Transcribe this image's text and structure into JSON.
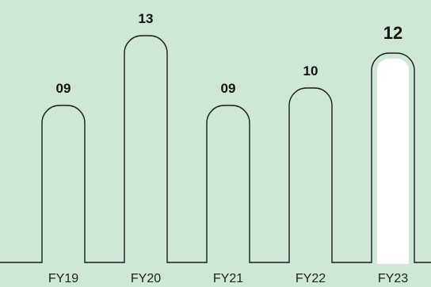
{
  "chart_data": {
    "type": "bar",
    "title": "",
    "xlabel": "",
    "ylabel": "",
    "categories": [
      "FY19",
      "FY20",
      "FY21",
      "FY22",
      "FY23"
    ],
    "values": [
      9,
      13,
      9,
      10,
      12
    ],
    "value_labels": [
      "09",
      "13",
      "09",
      "10",
      "12"
    ],
    "highlight_index": 4,
    "ylim": [
      0,
      13
    ],
    "grid": false,
    "legend": "none",
    "colors": {
      "background": "#cfe7d6",
      "outline": "#1a1a1a",
      "highlight_fill": "#ffffff"
    }
  }
}
